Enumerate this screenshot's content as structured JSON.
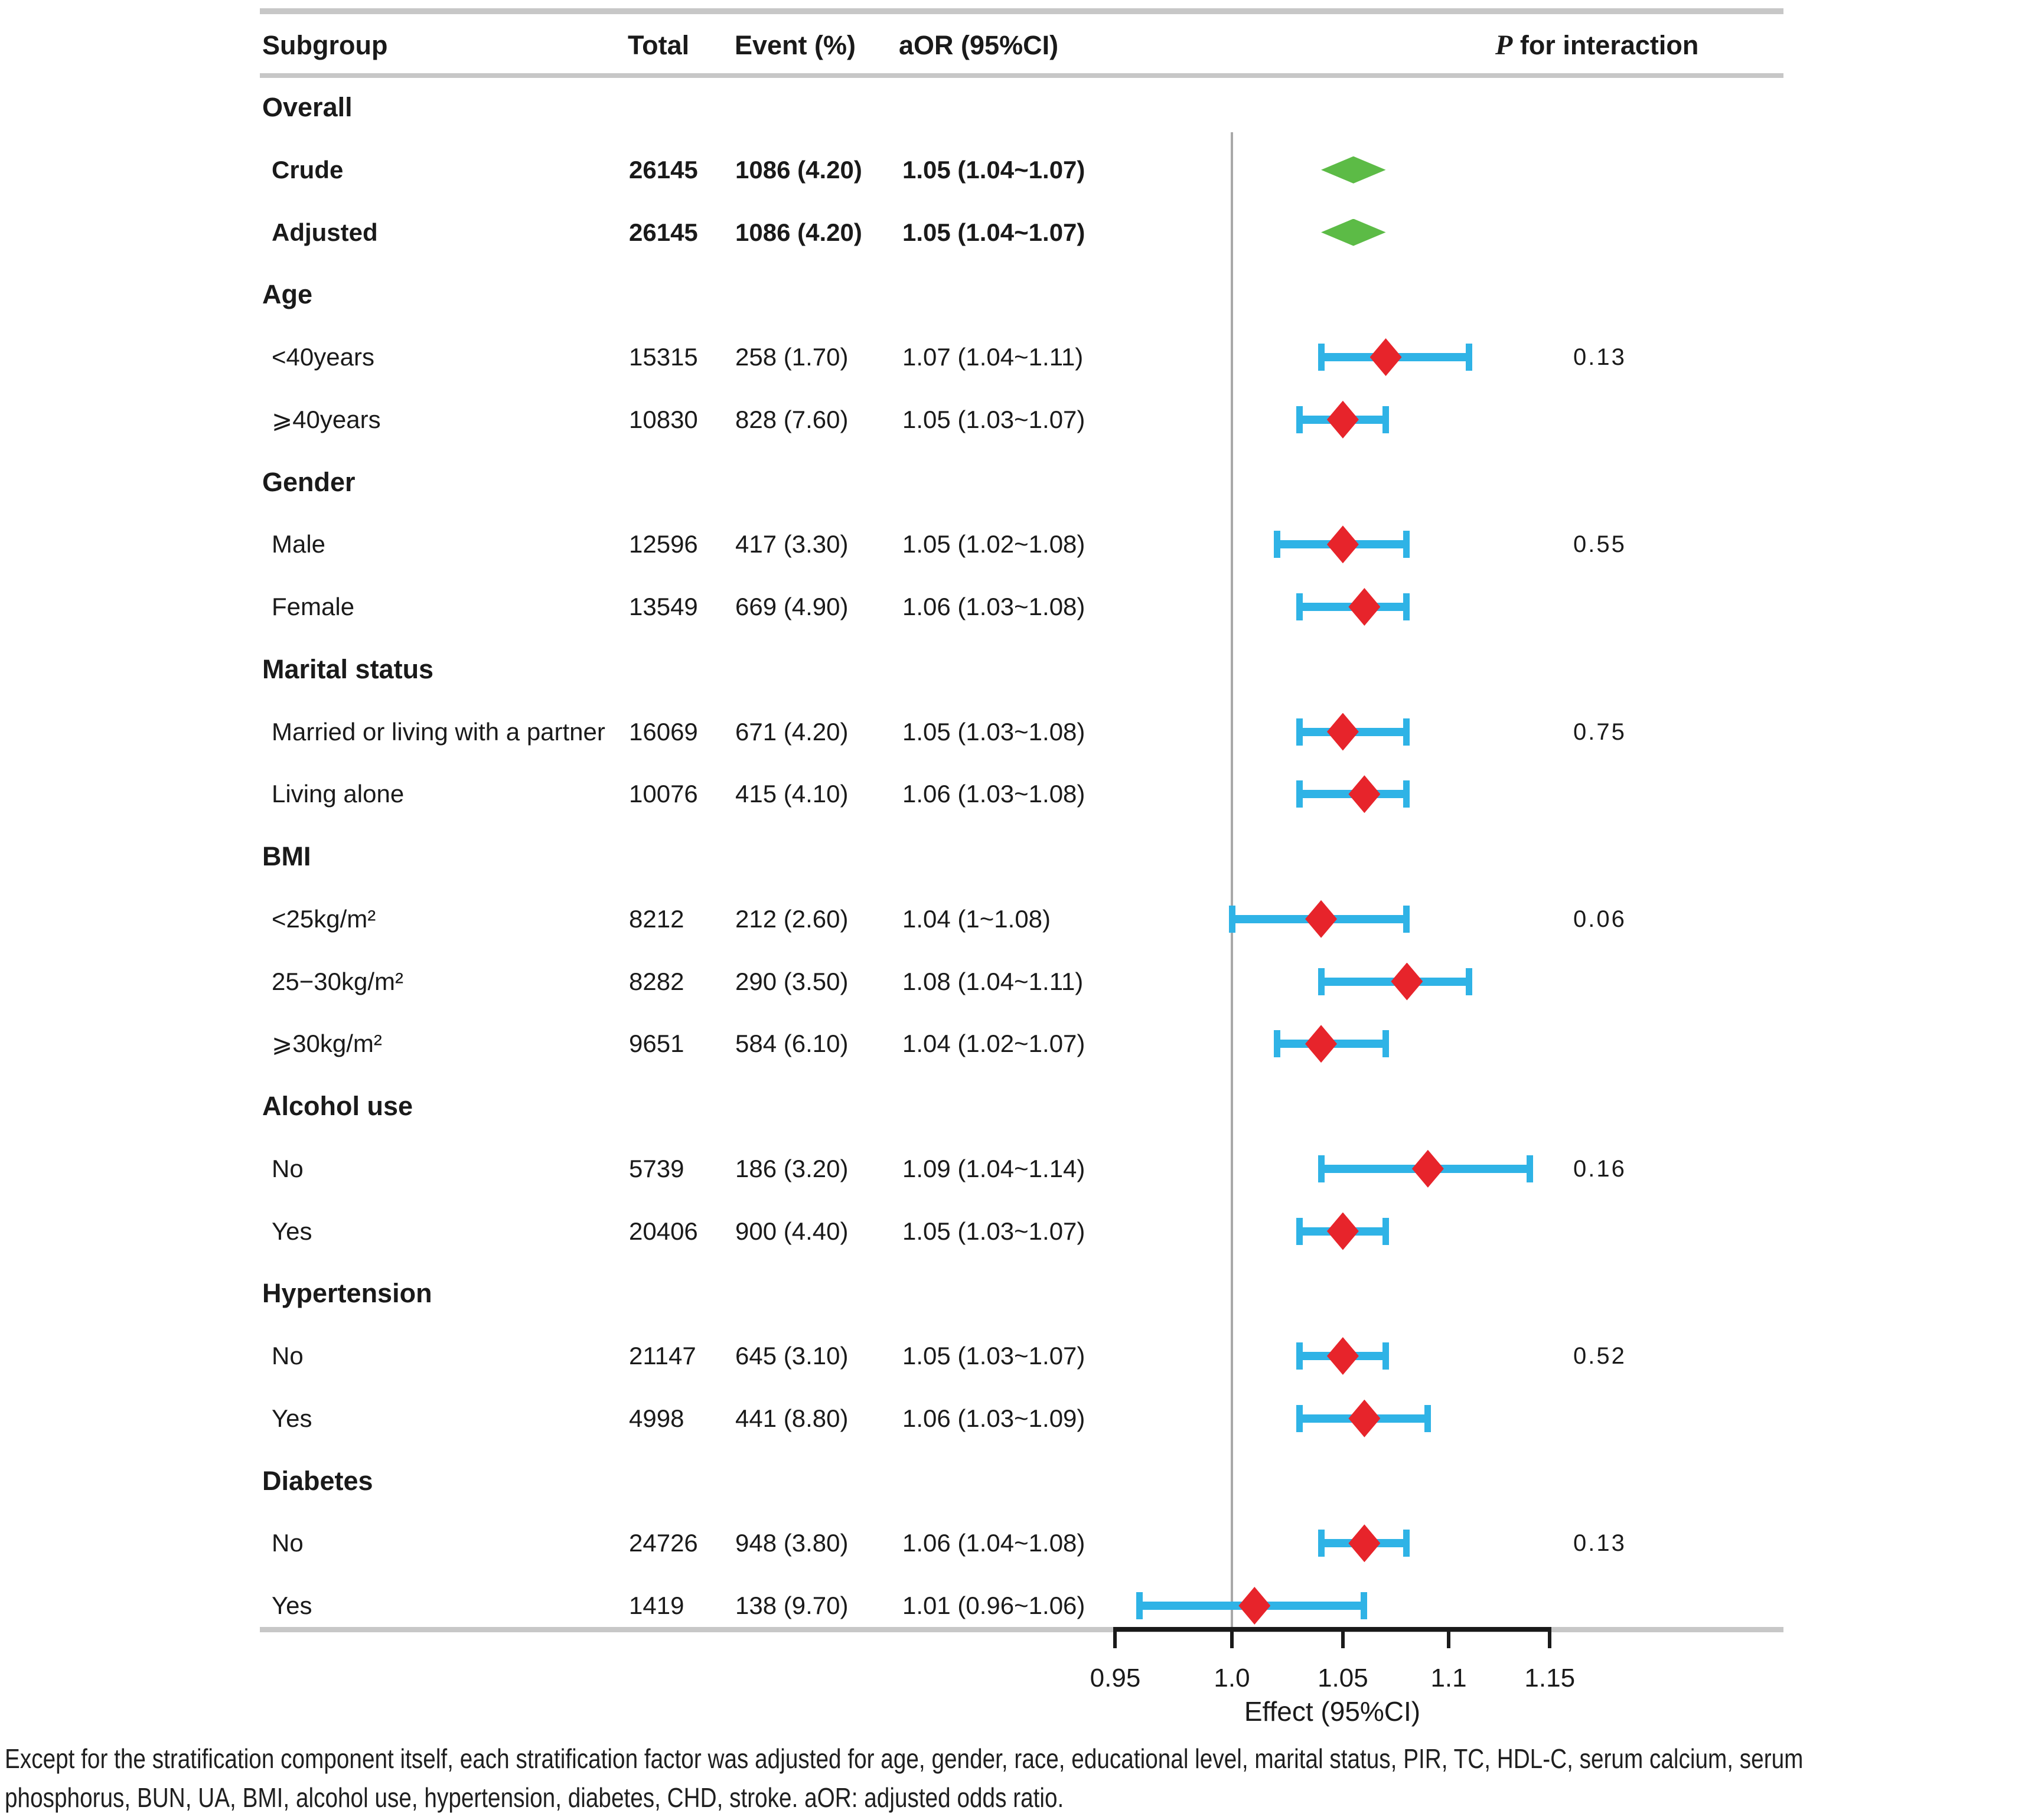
{
  "chart_data": {
    "type": "table",
    "subtype": "forest-plot",
    "title": "",
    "xlabel": "Effect (95%CI)",
    "axis": {
      "scale": "log",
      "min": 0.95,
      "max": 1.15,
      "ticks": [
        "0.95",
        "1.0",
        "1.05",
        "1.1",
        "1.15"
      ],
      "tick_values": [
        0.95,
        1.0,
        1.05,
        1.1,
        1.15
      ],
      "reference_value": 1.0,
      "label": "Effect (95%CI)"
    },
    "columns": {
      "subgroup": "Subgroup",
      "total": "Total",
      "event": "Event (%)",
      "aor": "aOR (95%CI)",
      "p_italic": "P",
      "p_rest": " for interaction"
    },
    "rows": [
      {
        "type": "group",
        "label": "Overall"
      },
      {
        "type": "summary",
        "label": "Crude",
        "total": "26145",
        "event": "1086 (4.20)",
        "aor": "1.05 (1.04~1.07)",
        "est": 1.05,
        "lo": 1.04,
        "hi": 1.07
      },
      {
        "type": "summary",
        "label": "Adjusted",
        "total": "26145",
        "event": "1086 (4.20)",
        "aor": "1.05 (1.04~1.07)",
        "est": 1.05,
        "lo": 1.04,
        "hi": 1.07
      },
      {
        "type": "group",
        "label": "Age"
      },
      {
        "type": "data",
        "label": "<40years",
        "total": "15315",
        "event": "258 (1.70)",
        "aor": "1.07 (1.04~1.11)",
        "est": 1.07,
        "lo": 1.04,
        "hi": 1.11,
        "p": "0.13"
      },
      {
        "type": "data",
        "label": "⩾40years",
        "total": "10830",
        "event": "828 (7.60)",
        "aor": "1.05 (1.03~1.07)",
        "est": 1.05,
        "lo": 1.03,
        "hi": 1.07
      },
      {
        "type": "group",
        "label": "Gender"
      },
      {
        "type": "data",
        "label": "Male",
        "total": "12596",
        "event": "417 (3.30)",
        "aor": "1.05 (1.02~1.08)",
        "est": 1.05,
        "lo": 1.02,
        "hi": 1.08,
        "p": "0.55"
      },
      {
        "type": "data",
        "label": "Female",
        "total": "13549",
        "event": "669 (4.90)",
        "aor": "1.06 (1.03~1.08)",
        "est": 1.06,
        "lo": 1.03,
        "hi": 1.08
      },
      {
        "type": "group",
        "label": "Marital status"
      },
      {
        "type": "data",
        "label": "Married or living with a partner",
        "total": "16069",
        "event": "671 (4.20)",
        "aor": "1.05 (1.03~1.08)",
        "est": 1.05,
        "lo": 1.03,
        "hi": 1.08,
        "p": "0.75"
      },
      {
        "type": "data",
        "label": "Living alone",
        "total": "10076",
        "event": "415 (4.10)",
        "aor": "1.06 (1.03~1.08)",
        "est": 1.06,
        "lo": 1.03,
        "hi": 1.08
      },
      {
        "type": "group",
        "label": "BMI"
      },
      {
        "type": "data",
        "label": "<25kg/m²",
        "total": "8212",
        "event": "212 (2.60)",
        "aor": "1.04 (1~1.08)",
        "est": 1.04,
        "lo": 1.0,
        "hi": 1.08,
        "p": "0.06"
      },
      {
        "type": "data",
        "label": "25−30kg/m²",
        "total": "8282",
        "event": "290 (3.50)",
        "aor": "1.08 (1.04~1.11)",
        "est": 1.08,
        "lo": 1.04,
        "hi": 1.11
      },
      {
        "type": "data",
        "label": "⩾30kg/m²",
        "total": "9651",
        "event": "584 (6.10)",
        "aor": "1.04 (1.02~1.07)",
        "est": 1.04,
        "lo": 1.02,
        "hi": 1.07
      },
      {
        "type": "group",
        "label": "Alcohol use"
      },
      {
        "type": "data",
        "label": "No",
        "total": "5739",
        "event": "186 (3.20)",
        "aor": "1.09 (1.04~1.14)",
        "est": 1.09,
        "lo": 1.04,
        "hi": 1.14,
        "p": "0.16"
      },
      {
        "type": "data",
        "label": "Yes",
        "total": "20406",
        "event": "900 (4.40)",
        "aor": "1.05 (1.03~1.07)",
        "est": 1.05,
        "lo": 1.03,
        "hi": 1.07
      },
      {
        "type": "group",
        "label": "Hypertension"
      },
      {
        "type": "data",
        "label": "No",
        "total": "21147",
        "event": "645 (3.10)",
        "aor": "1.05 (1.03~1.07)",
        "est": 1.05,
        "lo": 1.03,
        "hi": 1.07,
        "p": "0.52"
      },
      {
        "type": "data",
        "label": "Yes",
        "total": "4998",
        "event": "441 (8.80)",
        "aor": "1.06 (1.03~1.09)",
        "est": 1.06,
        "lo": 1.03,
        "hi": 1.09
      },
      {
        "type": "group",
        "label": "Diabetes"
      },
      {
        "type": "data",
        "label": "No",
        "total": "24726",
        "event": "948 (3.80)",
        "aor": "1.06 (1.04~1.08)",
        "est": 1.06,
        "lo": 1.04,
        "hi": 1.08,
        "p": "0.13"
      },
      {
        "type": "data",
        "label": "Yes",
        "total": "1419",
        "event": "138 (9.70)",
        "aor": "1.01 (0.96~1.06)",
        "est": 1.01,
        "lo": 0.96,
        "hi": 1.06
      }
    ],
    "legend_position": "none",
    "grid": false
  },
  "caption": {
    "line1": "Except for the stratification component itself, each stratification factor was adjusted for age, gender, race, educational level, marital status, PIR, TC, HDL-C, serum calcium, serum",
    "line2": "phosphorus, BUN, UA, BMI, alcohol use, hypertension, diabetes, CHD, stroke. aOR: adjusted odds ratio."
  },
  "colors": {
    "estimate_red": "#e7242b",
    "ci_cyan": "#2fb3e6",
    "summary_green": "#5cbb46",
    "rule_gray": "#c7c7c7",
    "reference_gray": "#a9a9a9",
    "axis_black": "#1a1a1a"
  }
}
